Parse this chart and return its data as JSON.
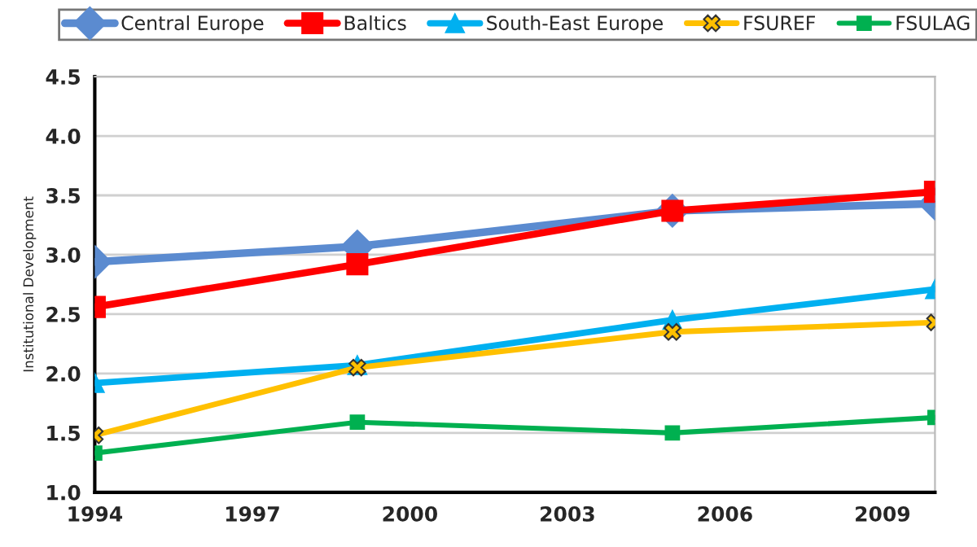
{
  "chart_data": {
    "type": "line",
    "ylabel": "Institutional Development",
    "x": [
      1994,
      1999,
      2005,
      2010
    ],
    "series": [
      {
        "name": "Central Europe",
        "color": "#5b8bd0",
        "marker": "diamond",
        "values": [
          2.94,
          3.07,
          3.37,
          3.43
        ]
      },
      {
        "name": "Baltics",
        "color": "#ff0000",
        "marker": "square",
        "values": [
          2.56,
          2.92,
          3.37,
          3.53
        ]
      },
      {
        "name": "South-East Europe",
        "color": "#00b0f0",
        "marker": "triangle",
        "values": [
          1.92,
          2.07,
          2.45,
          2.71
        ]
      },
      {
        "name": "FSUREF",
        "color": "#ffc000",
        "marker": "cross",
        "values": [
          1.48,
          2.05,
          2.35,
          2.43
        ]
      },
      {
        "name": "FSULAG",
        "color": "#00b050",
        "marker": "square",
        "values": [
          1.33,
          1.59,
          1.5,
          1.63
        ]
      }
    ],
    "xlim": [
      1994,
      2010
    ],
    "xticks": [
      1994,
      1997,
      2000,
      2003,
      2006,
      2009
    ],
    "ylim": [
      1.0,
      4.5
    ],
    "yticks": [
      {
        "value": 1.0,
        "label": "1.0"
      },
      {
        "value": 1.5,
        "label": "1.5"
      },
      {
        "value": 2.0,
        "label": "2.0"
      },
      {
        "value": 2.5,
        "label": "2.5"
      },
      {
        "value": 3.0,
        "label": "3.0"
      },
      {
        "value": 3.5,
        "label": "3.5"
      },
      {
        "value": 4.0,
        "label": "4.0"
      },
      {
        "value": 4.5,
        "label": "4.5"
      }
    ],
    "grid": "y",
    "legend": "top",
    "line_style": "solid"
  }
}
